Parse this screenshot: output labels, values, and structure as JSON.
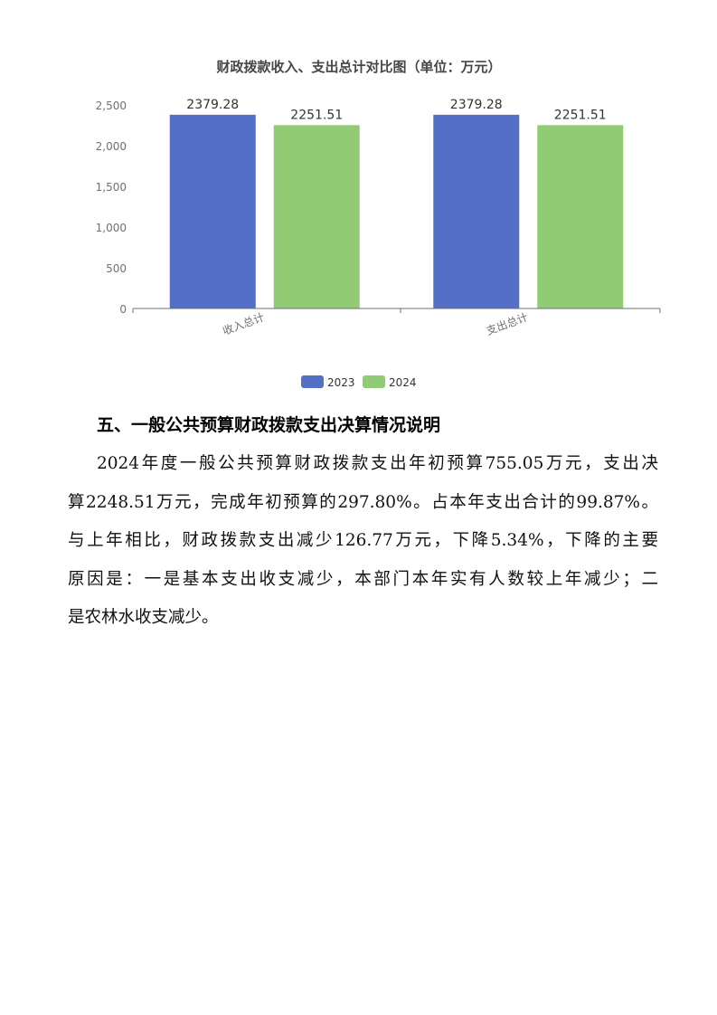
{
  "chart_data": {
    "type": "bar",
    "title": "财政拨款收入、支出总计对比图（单位：万元）",
    "categories": [
      "收入总计",
      "支出总计"
    ],
    "series": [
      {
        "name": "2023",
        "values": [
          2379.28,
          2379.28
        ],
        "color": "#5470c6"
      },
      {
        "name": "2024",
        "values": [
          2251.51,
          2251.51
        ],
        "color": "#91cc75"
      }
    ],
    "data_labels": [
      [
        "2379.28",
        "2251.51"
      ],
      [
        "2379.28",
        "2251.51"
      ]
    ],
    "yticks": [
      "0",
      "500",
      "1,000",
      "1,500",
      "2,000",
      "2,500"
    ],
    "ylim": [
      0,
      2500
    ],
    "legend_placement": "bottom",
    "grid": false
  },
  "section": {
    "heading": "五、一般公共预算财政拨款支出决算情况说明",
    "lines": [
      "2024年度一般公共预算财政拨款支出年初预算755.05万元，支出决",
      "算2248.51万元，完成年初预算的297.80%。占本年支出合计的99.87%。",
      "与上年相比，财政拨款支出减少126.77万元，下降5.34%，下降的主要",
      "原因是：一是基本支出收支减少，本部门本年实有人数较上年减少；二",
      "是农林水收支减少。"
    ]
  }
}
